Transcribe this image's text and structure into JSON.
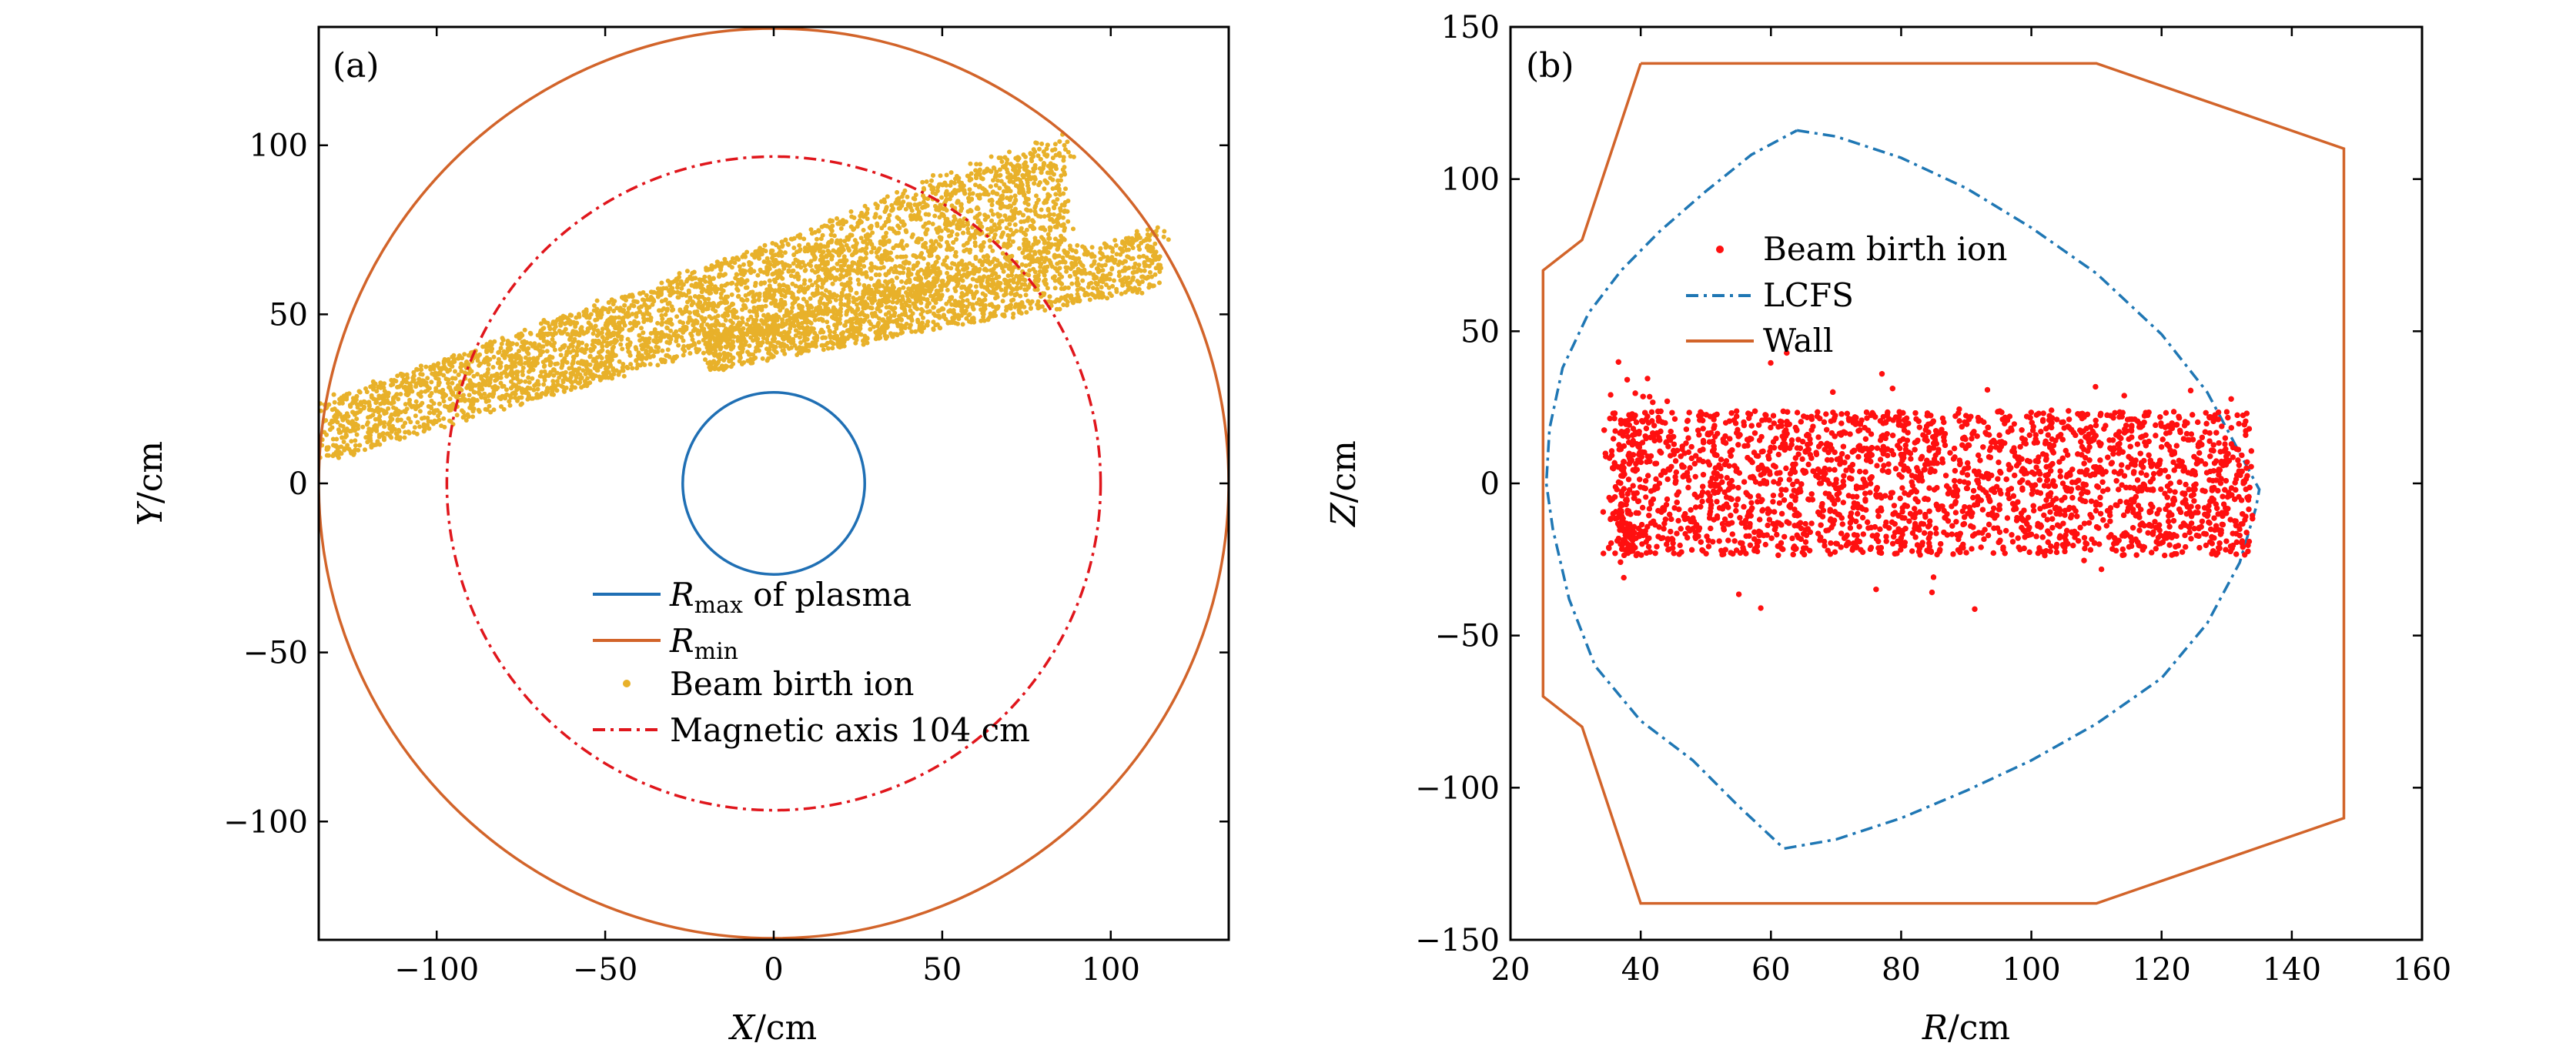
{
  "chart_data": [
    {
      "type": "scatter",
      "panel_label": "(a)",
      "xlabel_var": "X",
      "xlabel_unit": "/cm",
      "ylabel_var": "Y",
      "ylabel_unit": "/cm",
      "xlim": [
        -135,
        135
      ],
      "ylim": [
        -135,
        135
      ],
      "xticks": [
        -100,
        -50,
        0,
        50,
        100
      ],
      "yticks": [
        -100,
        -50,
        0,
        50,
        100
      ],
      "tick_labels_x": [
        "−100",
        "−50",
        "0",
        "50",
        "100"
      ],
      "tick_labels_y": [
        "−100",
        "−50",
        "0",
        "50",
        "100"
      ],
      "grid": false,
      "legend_position": "lower-center",
      "series": [
        {
          "legend_main": "R",
          "legend_sub": "max",
          "legend_suffix": " of plasma",
          "kind": "circle",
          "radius": 27,
          "color": "#1f6fb4",
          "style": "solid"
        },
        {
          "legend_main": "R",
          "legend_sub": "min",
          "legend_suffix": "",
          "kind": "circle",
          "radius": 135,
          "color": "#d2642a",
          "style": "solid"
        },
        {
          "legend_main": "Beam birth ion",
          "legend_sub": "",
          "legend_suffix": "",
          "kind": "scatter",
          "color": "#e8b12a",
          "style": "dots",
          "bands": [
            {
              "x_start": -135,
              "y_lower_start": 6,
              "y_upper_start": 24,
              "x_end": 87,
              "y_lower_end": 70,
              "y_upper_end": 102
            },
            {
              "x_start": -20,
              "y_lower_start": 33,
              "y_upper_start": 45,
              "x_end": 115,
              "y_lower_end": 58,
              "y_upper_end": 75
            }
          ]
        },
        {
          "legend_main": "Magnetic axis 104 cm",
          "legend_sub": "",
          "legend_suffix": "",
          "kind": "circle",
          "radius": 97,
          "color": "#e0161c",
          "style": "dashdot"
        }
      ]
    },
    {
      "type": "scatter",
      "panel_label": "(b)",
      "xlabel_var": "R",
      "xlabel_unit": "/cm",
      "ylabel_var": "Z",
      "ylabel_unit": "/cm",
      "xlim": [
        20,
        160
      ],
      "ylim": [
        -150,
        150
      ],
      "xticks": [
        20,
        40,
        60,
        80,
        100,
        120,
        140,
        160
      ],
      "yticks": [
        -150,
        -100,
        -50,
        0,
        50,
        100,
        150
      ],
      "tick_labels_x": [
        "20",
        "40",
        "60",
        "80",
        "100",
        "120",
        "140",
        "160"
      ],
      "tick_labels_y": [
        "−150",
        "−100",
        "−50",
        "0",
        "50",
        "100",
        "150"
      ],
      "grid": false,
      "legend_position": "upper-left",
      "series": [
        {
          "legend_main": "Beam birth ion",
          "kind": "scatter",
          "color": "#ff1010",
          "style": "dots",
          "region": {
            "r_min": 37,
            "r_max": 134,
            "z_min": -25,
            "z_max": 25
          }
        },
        {
          "legend_main": "LCFS",
          "kind": "line",
          "color": "#1f77b4",
          "style": "dashdot",
          "x": [
            64,
            70,
            80,
            90,
            100,
            110,
            120,
            127,
            132,
            134.5,
            135,
            134.5,
            132,
            127,
            120,
            110,
            100,
            90,
            80,
            70,
            62,
            55,
            48,
            40,
            33,
            29,
            26.5,
            25.5,
            26,
            28,
            32,
            37,
            43,
            50,
            57,
            64
          ],
          "y": [
            116,
            114,
            107,
            97,
            84,
            69,
            49,
            30,
            10,
            0,
            -2,
            -8,
            -26,
            -46,
            -64,
            -79,
            -91,
            -101,
            -110,
            -117,
            -120,
            -106,
            -91,
            -78,
            -60,
            -38,
            -15,
            0,
            18,
            38,
            56,
            70,
            83,
            96,
            108,
            116
          ]
        },
        {
          "legend_main": "Wall",
          "kind": "line",
          "color": "#d2642a",
          "style": "solid",
          "x": [
            40,
            110,
            148,
            148,
            110,
            40,
            31,
            25,
            25,
            31,
            40
          ],
          "y": [
            138,
            138,
            110,
            -110,
            -138,
            -138,
            -80,
            -70,
            70,
            80,
            138
          ]
        }
      ]
    }
  ]
}
